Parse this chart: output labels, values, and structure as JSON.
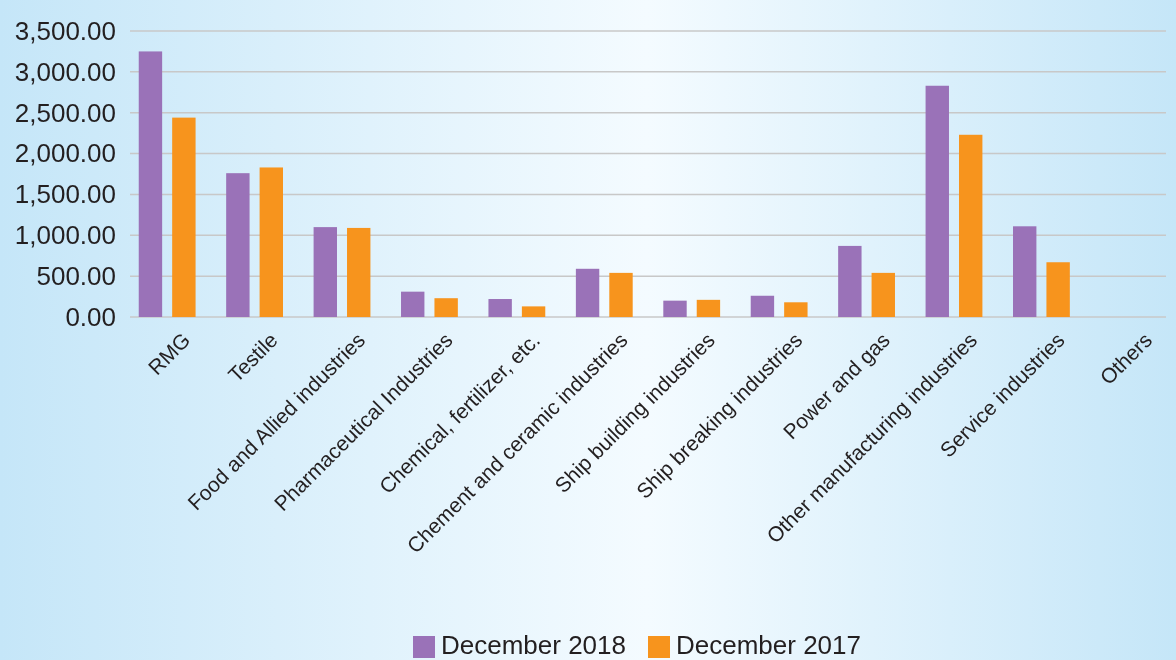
{
  "chart_data": {
    "type": "bar",
    "categories": [
      "RMG",
      "Testile",
      "Food and Allied industries",
      "Pharmaceutical Industries",
      "Chemical, fertilizer, etc.",
      "Chement and ceramic industries",
      "Ship building industries",
      "Ship breaking industries",
      "Power and gas",
      "Other manufacturing industries",
      "Service industries",
      "Others"
    ],
    "series": [
      {
        "name": "December 2018",
        "color": "#9a72b8",
        "values": [
          3250,
          1760,
          1100,
          310,
          220,
          590,
          200,
          260,
          870,
          2830,
          1110,
          null
        ]
      },
      {
        "name": "December 2017",
        "color": "#f7941d",
        "values": [
          2440,
          1830,
          1090,
          230,
          130,
          540,
          210,
          180,
          540,
          2230,
          670,
          null
        ]
      }
    ],
    "ylim": [
      0,
      3500
    ],
    "yticks": [
      {
        "value": 0,
        "label": "0.00"
      },
      {
        "value": 500,
        "label": "500.00"
      },
      {
        "value": 1000,
        "label": "1,000.00"
      },
      {
        "value": 1500,
        "label": "1,500.00"
      },
      {
        "value": 2000,
        "label": "2,000.00"
      },
      {
        "value": 2500,
        "label": "2,500.00"
      },
      {
        "value": 3000,
        "label": "3,000.00"
      },
      {
        "value": 3500,
        "label": "3,500.00"
      }
    ],
    "grid": "y",
    "legend": "bottom"
  }
}
